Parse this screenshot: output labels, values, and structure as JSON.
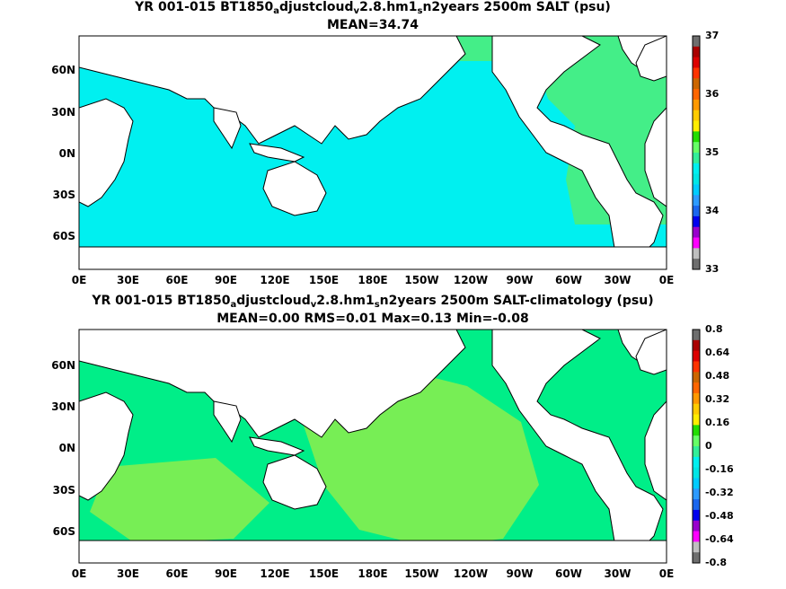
{
  "panels": [
    {
      "title_parts": [
        "YR 001-015 BT1850",
        "a",
        "djustcloud",
        "v",
        "2.8.hm1",
        "s",
        "n2years 2500m SALT (psu)"
      ],
      "subtitle": "MEAN=34.74",
      "colorbar_ticks": [
        "37",
        "36",
        "35",
        "34",
        "33"
      ]
    },
    {
      "title_parts": [
        "YR 001-015 BT1850",
        "a",
        "djustcloud",
        "v",
        "2.8.hm1",
        "s",
        "n2years 2500m SALT-climatology (psu)"
      ],
      "subtitle": "MEAN=0.00   RMS=0.01   Max=0.13   Min=-0.08",
      "colorbar_ticks": [
        "0.8",
        "0.64",
        "0.48",
        "0.32",
        "0.16",
        "0",
        "-0.16",
        "-0.32",
        "-0.48",
        "-0.64",
        "-0.8"
      ]
    }
  ],
  "x_ticks": [
    "0E",
    "30E",
    "60E",
    "90E",
    "120E",
    "150E",
    "180E",
    "150W",
    "120W",
    "90W",
    "60W",
    "30W",
    "0E"
  ],
  "y_ticks": [
    "60N",
    "30N",
    "0N",
    "30S",
    "60S"
  ],
  "colorbar_colors": [
    "#6e6e6e",
    "#bfbfbf",
    "#ff00ff",
    "#9900cc",
    "#0000ee",
    "#1a66ee",
    "#2d9bff",
    "#00ccff",
    "#00e6e6",
    "#00f0f0",
    "#33ee99",
    "#66ff66",
    "#22dd00",
    "#ffee00",
    "#ffcc00",
    "#ff9900",
    "#ff6600",
    "#cc6600",
    "#ff3300",
    "#dd0000",
    "#aa0000",
    "#6e6e6e"
  ],
  "colors": {
    "ocean_top": "#00f0f0",
    "atlantic_top": "#44ee88",
    "ocean_bottom": "#00ee88",
    "anomaly_light": "#77ee55",
    "land": "#ffffff"
  }
}
